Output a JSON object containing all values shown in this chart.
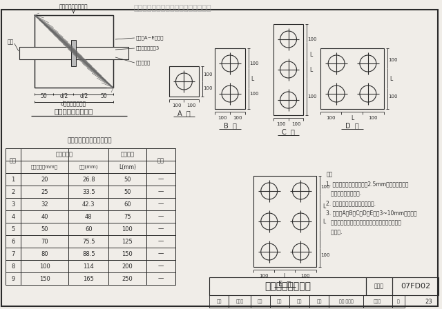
{
  "watermark": "本资料仅供内部使用，广泛用于商业。",
  "paper_color": "#f0ede8",
  "line_color": "#2a2a2a",
  "title_diagram": "穿墙管密闭肋示意图",
  "table_title": "热镀锌钢管和密闭肋尺寸表",
  "col1_header1": "序号",
  "col23_header1": "热镀锌钢管",
  "col4_header1": "管距尺寸",
  "col5_header1": "备注",
  "col2_header2": "公称直径（mm）",
  "col3_header2": "外径(mm)",
  "col4_header2": "L(mm)",
  "col5_header2": "—",
  "table_data": [
    [
      "1",
      "20",
      "26.8",
      "50",
      "—"
    ],
    [
      "2",
      "25",
      "33.5",
      "50",
      "—"
    ],
    [
      "3",
      "32",
      "42.3",
      "60",
      "—"
    ],
    [
      "4",
      "40",
      "48",
      "75",
      "—"
    ],
    [
      "5",
      "50",
      "60",
      "100",
      "—"
    ],
    [
      "6",
      "70",
      "75.5",
      "125",
      "—"
    ],
    [
      "7",
      "80",
      "88.5",
      "150",
      "—"
    ],
    [
      "8",
      "100",
      "114",
      "200",
      "—"
    ],
    [
      "9",
      "150",
      "165",
      "250",
      "—"
    ]
  ],
  "notes": [
    "注：",
    "1. 穿墙管应采用壁厚不小于2.5mm的热镀锌钢管，",
    "   管道数量由设计确定.",
    "2. 防护密闭穿墙管需另加抗力片.",
    "3. 密闭肋A、B、C、D、E型为3~10mm厚的热镀",
    "   锌钢板，与热镀锌钢管双面焊接，同时应与结构钢",
    "   筋焊牢."
  ],
  "title_bottom": "穿墙管密闭肋详图",
  "drawing_label": "图案号",
  "drawing_no": "07FD02",
  "page_no": "23",
  "left_label1": "密闭肋A~E型见图",
  "left_label2": "密闭肋材料见注3",
  "left_label3": "热镀锌钢管",
  "top_label": "临空墙、防护密闭墙",
  "weld_label": "焊接"
}
